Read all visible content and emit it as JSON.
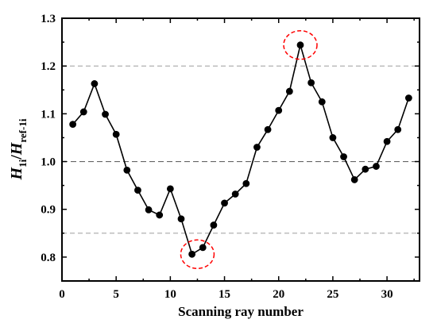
{
  "chart_data": {
    "type": "line",
    "xlabel": "Scanning ray number",
    "ylabel": {
      "main1": "H",
      "sub1": "1i",
      "slash": "/",
      "main2": "H",
      "sub2": "ref-1i"
    },
    "xlim": [
      0,
      33
    ],
    "ylim": [
      0.75,
      1.3
    ],
    "x_ticks": [
      {
        "value": 0,
        "label": "0"
      },
      {
        "value": 5,
        "label": "5"
      },
      {
        "value": 10,
        "label": "10"
      },
      {
        "value": 15,
        "label": "15"
      },
      {
        "value": 20,
        "label": "20"
      },
      {
        "value": 25,
        "label": "25"
      },
      {
        "value": 30,
        "label": "30"
      }
    ],
    "x_minor_ticks": [
      2.5,
      7.5,
      12.5,
      17.5,
      22.5,
      27.5,
      32.5
    ],
    "y_ticks": [
      {
        "value": 0.8,
        "label": "0.8"
      },
      {
        "value": 0.9,
        "label": "0.9"
      },
      {
        "value": 1.0,
        "label": "1.0"
      },
      {
        "value": 1.1,
        "label": "1.1"
      },
      {
        "value": 1.2,
        "label": "1.2"
      },
      {
        "value": 1.3,
        "label": "1.3"
      }
    ],
    "y_minor_ticks": [
      0.75,
      0.85,
      0.95,
      1.05,
      1.15,
      1.25
    ],
    "grid": false,
    "reference_lines": [
      {
        "y": 1.2,
        "style": "light-dashed",
        "color": "#a9a9a9"
      },
      {
        "y": 1.0,
        "style": "dashed",
        "color": "#666666"
      },
      {
        "y": 0.85,
        "style": "light-dashed",
        "color": "#a9a9a9"
      }
    ],
    "series": [
      {
        "color": "#000000",
        "marker": "circle",
        "x": [
          1,
          2,
          3,
          4,
          5,
          6,
          7,
          8,
          9,
          10,
          11,
          12,
          13,
          14,
          15,
          16,
          17,
          18,
          19,
          20,
          21,
          22,
          23,
          24,
          25,
          26,
          27,
          28,
          29,
          30,
          31,
          32
        ],
        "y": [
          1.078,
          1.104,
          1.163,
          1.099,
          1.057,
          0.982,
          0.94,
          0.899,
          0.888,
          0.943,
          0.88,
          0.806,
          0.82,
          0.867,
          0.913,
          0.932,
          0.954,
          1.03,
          1.067,
          1.107,
          1.147,
          1.244,
          1.165,
          1.125,
          1.05,
          1.01,
          0.962,
          0.984,
          0.99,
          1.042,
          1.067,
          1.133
        ]
      }
    ],
    "annotations": [
      {
        "type": "dashed-circle",
        "x": 12.5,
        "y": 0.806,
        "color": "#ff0000"
      },
      {
        "type": "dashed-circle",
        "x": 22,
        "y": 1.244,
        "color": "#ff0000"
      }
    ]
  }
}
